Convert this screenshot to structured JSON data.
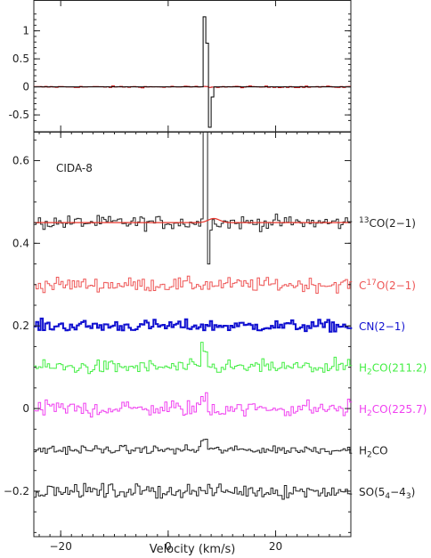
{
  "chart_data": [
    {
      "type": "line",
      "panel": "top",
      "xlim": [
        -25,
        34
      ],
      "ylim": [
        -0.8,
        1.55
      ],
      "yticks": [
        -0.5,
        0,
        0.5,
        1
      ],
      "ytick_labels": [
        "-0.5",
        "0",
        "0.5",
        "1"
      ],
      "series": [
        {
          "color": "#000000",
          "steps": [
            [
              -25,
              0
            ],
            [
              6.5,
              0
            ],
            [
              6.5,
              1.25
            ],
            [
              7.0,
              1.25
            ],
            [
              7.0,
              0.78
            ],
            [
              7.5,
              0.78
            ],
            [
              7.5,
              -0.72
            ],
            [
              8.0,
              -0.72
            ],
            [
              8.0,
              -0.18
            ],
            [
              8.5,
              -0.18
            ],
            [
              8.5,
              0
            ],
            [
              34,
              0
            ]
          ]
        },
        {
          "color": "#cc0000",
          "noise": 0.01,
          "line_y": 0
        }
      ]
    },
    {
      "type": "line",
      "panel": "bottom",
      "title": "CIDA-8",
      "xlabel": "Velocity (km/s)",
      "xlim": [
        -25,
        34
      ],
      "ylim": [
        -0.31,
        0.67
      ],
      "xticks": [
        -20,
        0,
        20
      ],
      "xtick_labels": [
        "−20",
        "0",
        "20"
      ],
      "yticks": [
        -0.2,
        0,
        0.2,
        0.4,
        0.6
      ],
      "ytick_labels": [
        "−0.2",
        "0",
        "0.2",
        "0.4",
        "0.6"
      ],
      "series": [
        {
          "name": "13CO(2-1)",
          "label_sup": "13",
          "label_main": "CO(2−1)",
          "color": "#222222",
          "offset": 0.45,
          "noise": 0.012,
          "fit_color": "#e8342a",
          "spike": [
            [
              6.4,
              7.0,
              0.9
            ],
            [
              7.0,
              7.6,
              0.35
            ]
          ]
        },
        {
          "name": "C17O(2-1)",
          "label_pre": "C",
          "label_sup": "17",
          "label_main": "O(2−1)",
          "color": "#ee5555",
          "offset": 0.3,
          "noise": 0.012
        },
        {
          "name": "CN(2-1)",
          "label_main": "CN(2−1)",
          "color": "#1010d0",
          "offset": 0.2,
          "noise": 0.01,
          "thick": true
        },
        {
          "name": "H2CO(211.2)",
          "label_pre": "H",
          "label_sub": "2",
          "label_main": "CO(211.2)",
          "color": "#44ee44",
          "offset": 0.1,
          "noise": 0.012,
          "bump": 0.045
        },
        {
          "name": "H2CO(225.7)",
          "label_pre": "H",
          "label_sub": "2",
          "label_main": "CO(225.7)",
          "color": "#f040f0",
          "offset": 0.0,
          "noise": 0.014,
          "bump": 0.03
        },
        {
          "name": "H2CO",
          "label_pre": "H",
          "label_sub": "2",
          "label_main": "CO",
          "color": "#222222",
          "offset": -0.1,
          "noise": 0.007,
          "bump": 0.03
        },
        {
          "name": "SO(54-43)",
          "label_main": "SO(5",
          "label_sub": "4",
          "label_mid": "−4",
          "label_sub2": "3",
          "label_end": ")",
          "color": "#222222",
          "offset": -0.2,
          "noise": 0.012
        }
      ]
    }
  ]
}
